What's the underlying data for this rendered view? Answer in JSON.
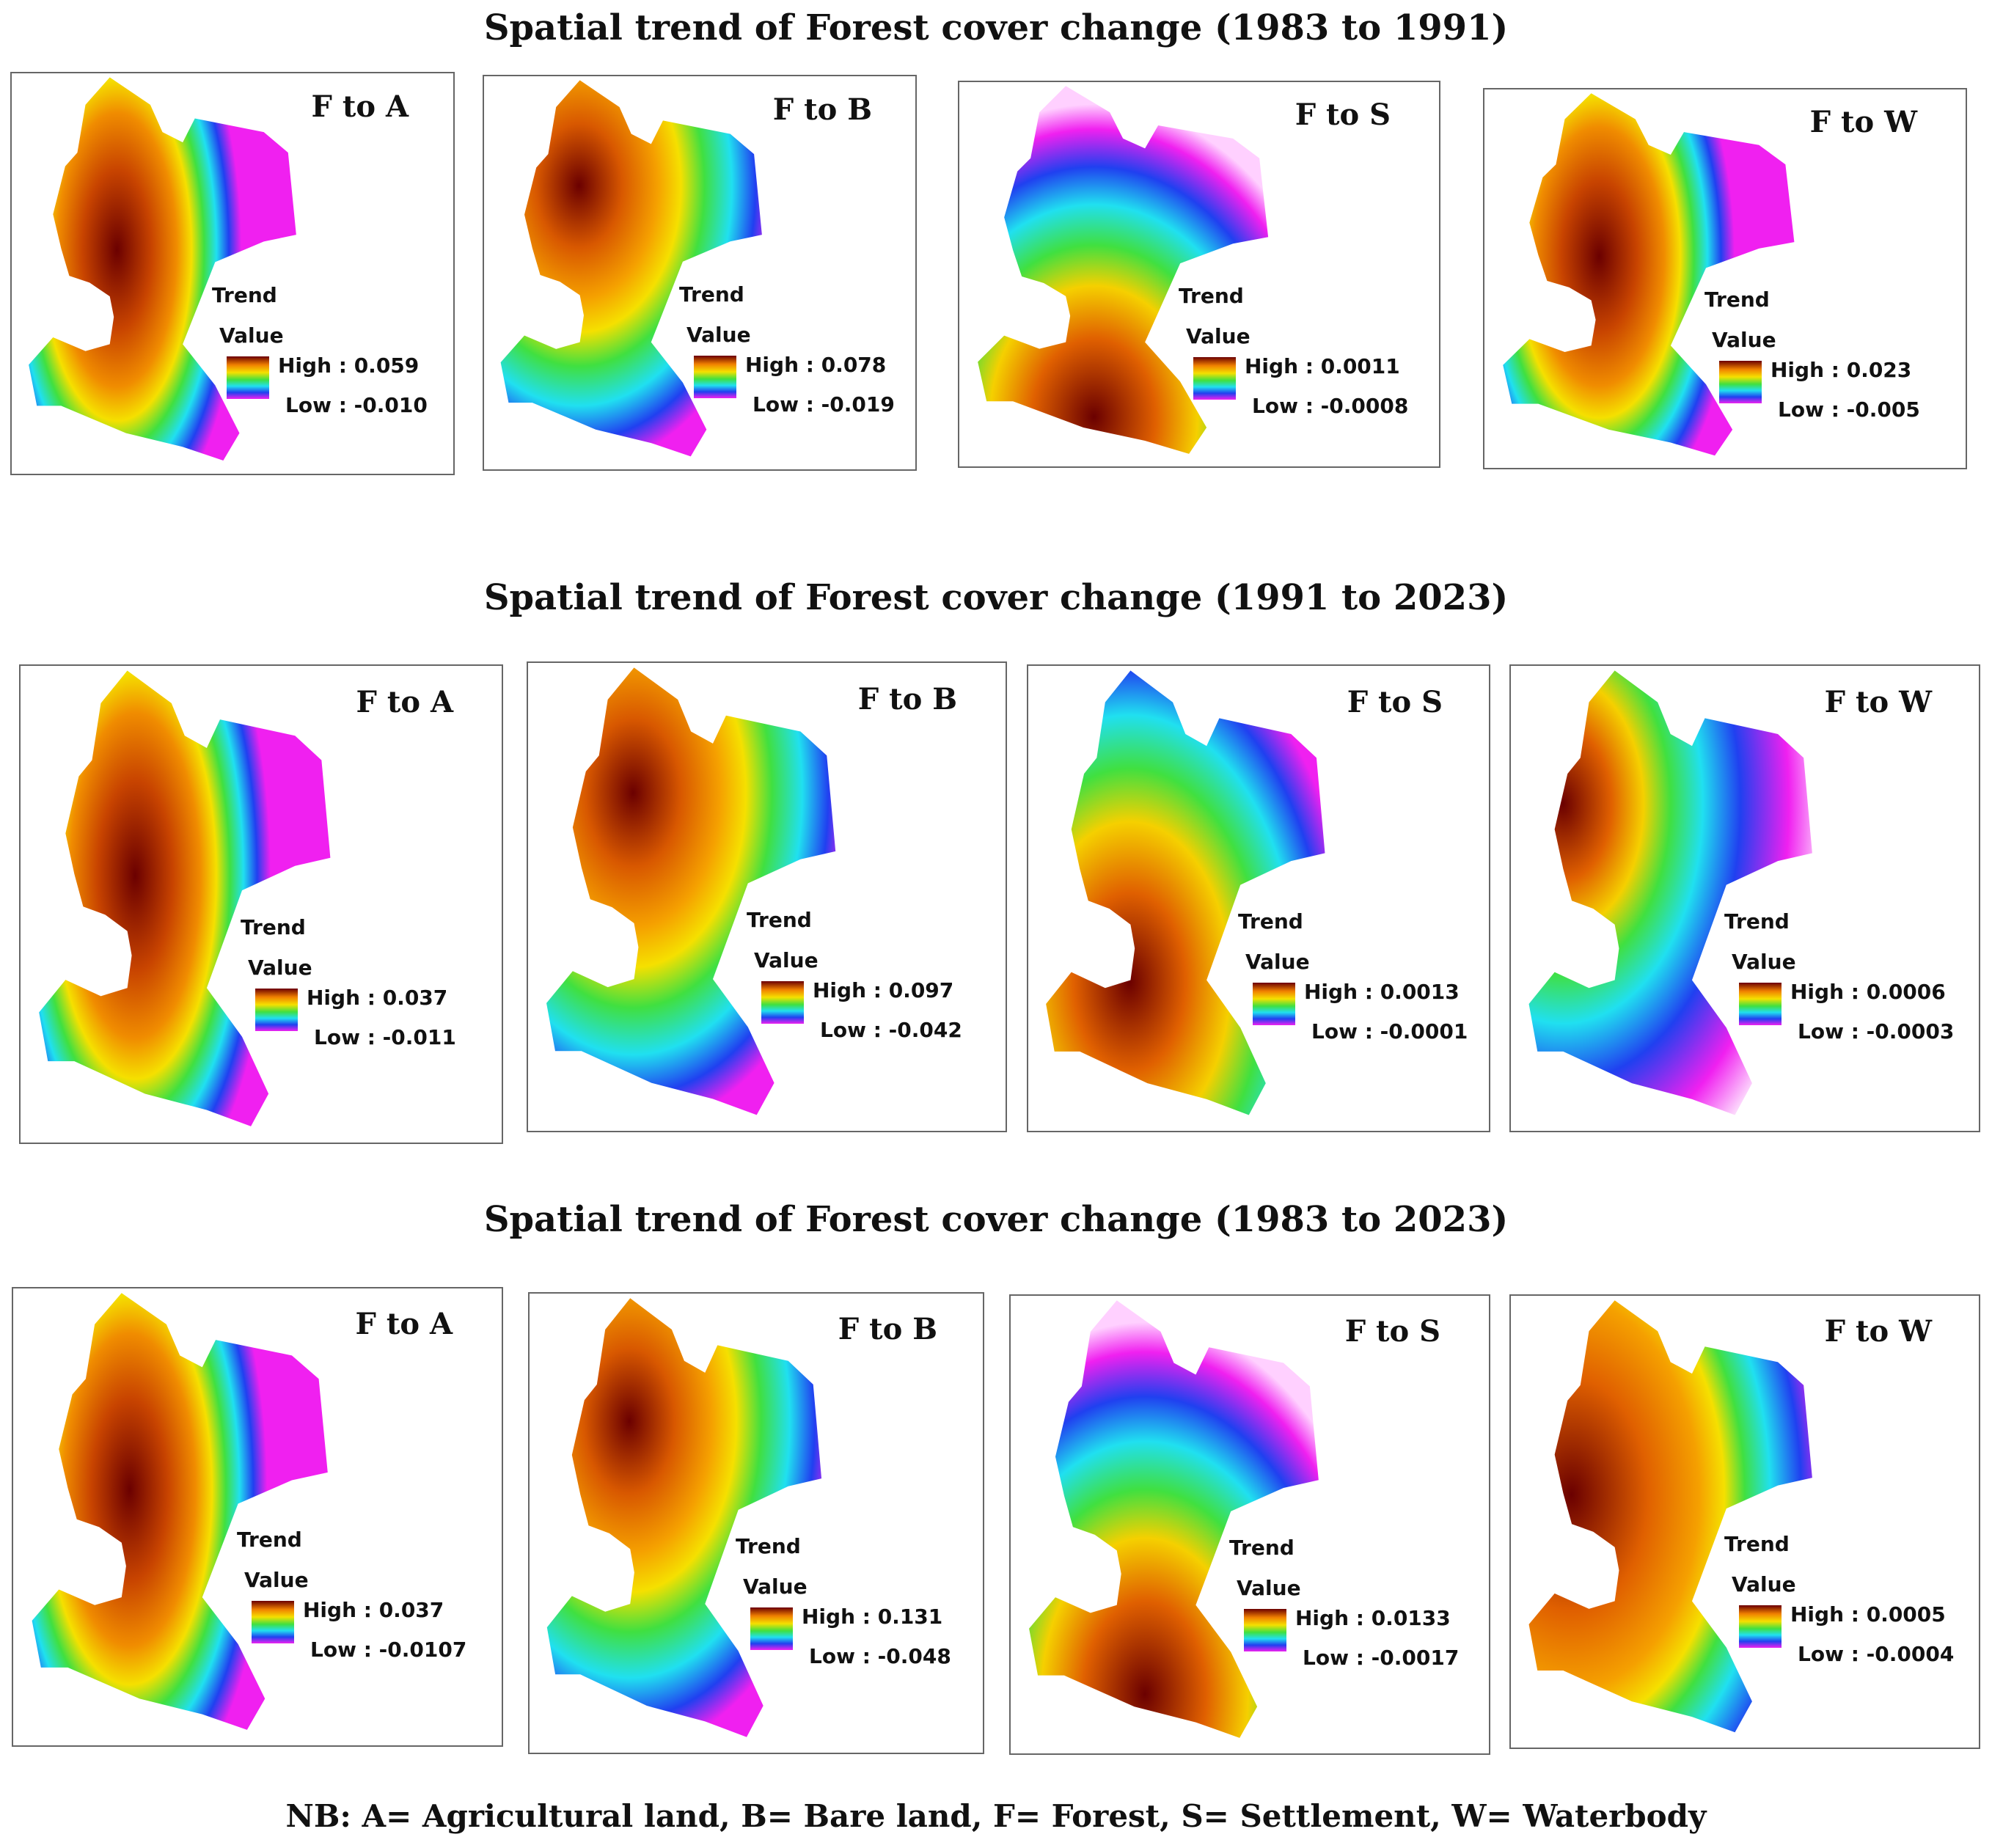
{
  "rows": [
    {
      "title": "Spatial trend of Forest cover change (1983  to 1991)",
      "panels": [
        {
          "title": "F to A",
          "legend_title_1": "Trend",
          "legend_title_2": "Value",
          "high": "High : 0.059",
          "low": "Low : -0.010",
          "pattern": "agri"
        },
        {
          "title": "F to B",
          "legend_title_1": "Trend",
          "legend_title_2": "Value",
          "high": "High : 0.078",
          "low": "Low : -0.019",
          "pattern": "bare"
        },
        {
          "title": "F to S",
          "legend_title_1": "Trend",
          "legend_title_2": "Value",
          "high": "High : 0.0011",
          "low": "Low : -0.0008",
          "pattern": "settle"
        },
        {
          "title": "F to W",
          "legend_title_1": "Trend",
          "legend_title_2": "Value",
          "high": "High : 0.023",
          "low": "Low : -0.005",
          "pattern": "agri"
        }
      ]
    },
    {
      "title": "Spatial trend of Forest cover change (1991  to 2023)",
      "panels": [
        {
          "title": "F to A",
          "legend_title_1": "Trend",
          "legend_title_2": "Value",
          "high": "High : 0.037",
          "low": "Low : -0.011",
          "pattern": "agri"
        },
        {
          "title": "F to B",
          "legend_title_1": "Trend",
          "legend_title_2": "Value",
          "high": "High : 0.097",
          "low": "Low : -0.042",
          "pattern": "bare"
        },
        {
          "title": "F to S",
          "legend_title_1": "Trend",
          "legend_title_2": "Value",
          "high": "High : 0.0013",
          "low": "Low : -0.0001",
          "pattern": "settle2"
        },
        {
          "title": "F to W",
          "legend_title_1": "Trend",
          "legend_title_2": "Value",
          "high": "High : 0.0006",
          "low": "Low : -0.0003",
          "pattern": "water"
        }
      ]
    },
    {
      "title": "Spatial trend of Forest cover change (1983  to 2023)",
      "panels": [
        {
          "title": "F to A",
          "legend_title_1": "Trend",
          "legend_title_2": "Value",
          "high": "High : 0.037",
          "low": "Low : -0.0107",
          "pattern": "agri"
        },
        {
          "title": "F to B",
          "legend_title_1": "Trend",
          "legend_title_2": "Value",
          "high": "High : 0.131",
          "low": "Low : -0.048",
          "pattern": "bare"
        },
        {
          "title": "F to S",
          "legend_title_1": "Trend",
          "legend_title_2": "Value",
          "high": "High : 0.0133",
          "low": "Low : -0.0017",
          "pattern": "settle"
        },
        {
          "title": "F to W",
          "legend_title_1": "Trend",
          "legend_title_2": "Value",
          "high": "High : 0.0005",
          "low": "Low : -0.0004",
          "pattern": "water2"
        }
      ]
    }
  ],
  "note": "NB: A= Agricultural land, B= Bare land, F= Forest, S= Settlement, W= Waterbody",
  "colors": {
    "high": "#6b0000",
    "orange": "#f08000",
    "yellow": "#f5e000",
    "green": "#40e040",
    "cyan": "#20e0f0",
    "blue": "#2040f0",
    "magenta": "#f020f0",
    "low": "#ffffff"
  }
}
